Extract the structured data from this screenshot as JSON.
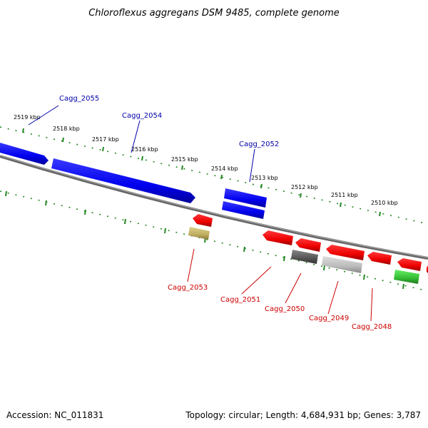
{
  "title": "Chloroflexus aggregans DSM 9485, complete genome",
  "footer": {
    "accession": "Accession: NC_011831",
    "summary": "Topology: circular; Length: 4,684,931 bp; Genes: 3,787"
  },
  "colors": {
    "forward": "#0000ee",
    "reverse": "#ee0000",
    "pseudo": "#c0b060",
    "rna": "#33cc33",
    "gray_dark": "#555555",
    "gray_light": "#bbbbbb",
    "backbone": "#777777",
    "ticks": "#228822",
    "label_fwd": "#0000aa",
    "label_rev": "#cc0000"
  },
  "scale_labels": [
    "2519 kbp",
    "2518 kbp",
    "2517 kbp",
    "2516 kbp",
    "2515 kbp",
    "2514 kbp",
    "2513 kbp",
    "2512 kbp",
    "2511 kbp",
    "2510 kbp"
  ],
  "gene_labels": {
    "forward": [
      "Cagg_2055",
      "Cagg_2054",
      "Cagg_2052"
    ],
    "reverse": [
      "Cagg_2053",
      "Cagg_2051",
      "Cagg_2050",
      "Cagg_2049",
      "Cagg_2048"
    ]
  }
}
